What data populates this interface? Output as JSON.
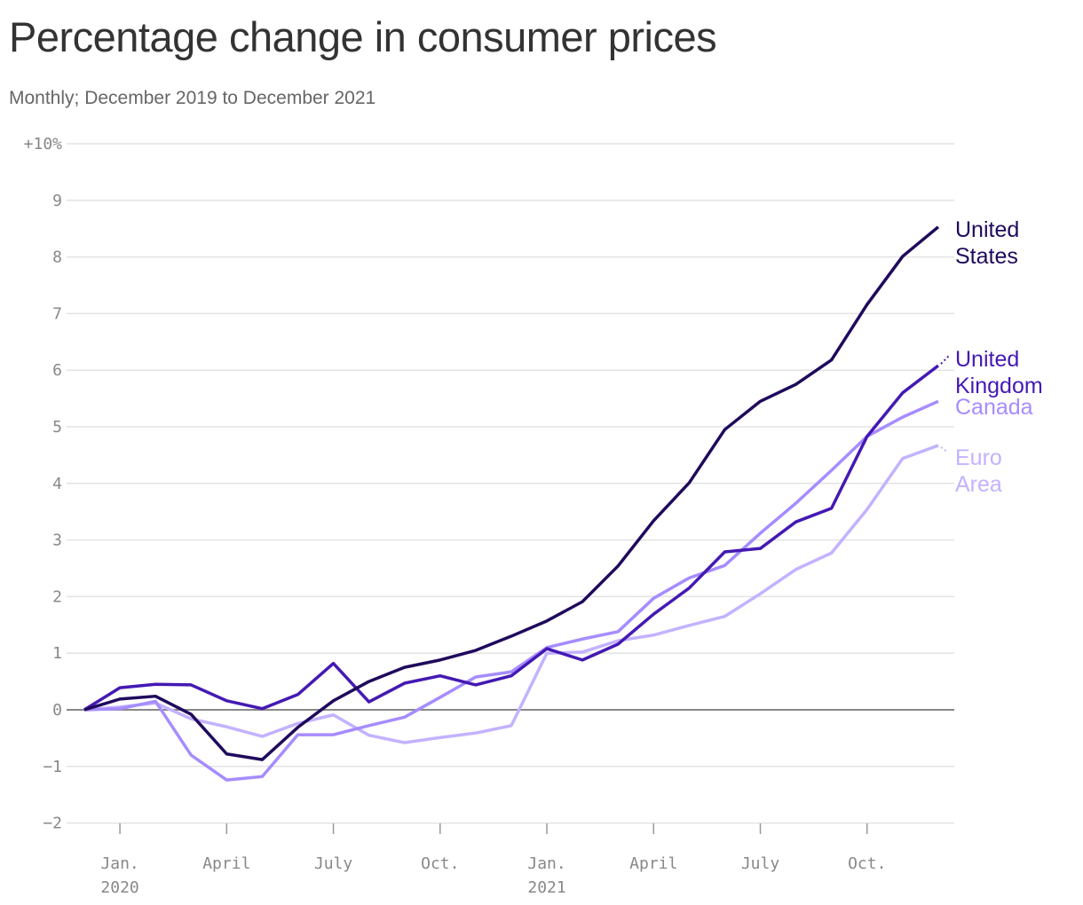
{
  "chart_data": {
    "type": "line",
    "title": "Percentage change in consumer prices",
    "subtitle": "Monthly; December 2019 to December 2021",
    "x": [
      "2019-12",
      "2020-01",
      "2020-02",
      "2020-03",
      "2020-04",
      "2020-05",
      "2020-06",
      "2020-07",
      "2020-08",
      "2020-09",
      "2020-10",
      "2020-11",
      "2020-12",
      "2021-01",
      "2021-02",
      "2021-03",
      "2021-04",
      "2021-05",
      "2021-06",
      "2021-07",
      "2021-08",
      "2021-09",
      "2021-10",
      "2021-11",
      "2021-12"
    ],
    "ylim": [
      -2,
      10
    ],
    "y_ticks": [
      {
        "v": 10,
        "label": "+10%"
      },
      {
        "v": 9,
        "label": "9"
      },
      {
        "v": 8,
        "label": "8"
      },
      {
        "v": 7,
        "label": "7"
      },
      {
        "v": 6,
        "label": "6"
      },
      {
        "v": 5,
        "label": "5"
      },
      {
        "v": 4,
        "label": "4"
      },
      {
        "v": 3,
        "label": "3"
      },
      {
        "v": 2,
        "label": "2"
      },
      {
        "v": 1,
        "label": "1"
      },
      {
        "v": 0,
        "label": "0"
      },
      {
        "v": -1,
        "label": "−1"
      },
      {
        "v": -2,
        "label": "−2"
      }
    ],
    "x_ticks": [
      {
        "i": 1,
        "label": "Jan.",
        "year": "2020"
      },
      {
        "i": 4,
        "label": "April",
        "year": ""
      },
      {
        "i": 7,
        "label": "July",
        "year": ""
      },
      {
        "i": 10,
        "label": "Oct.",
        "year": ""
      },
      {
        "i": 13,
        "label": "Jan.",
        "year": "2021"
      },
      {
        "i": 16,
        "label": "April",
        "year": ""
      },
      {
        "i": 19,
        "label": "July",
        "year": ""
      },
      {
        "i": 22,
        "label": "Oct.",
        "year": ""
      }
    ],
    "grid": true,
    "series": [
      {
        "name": "United States",
        "label_lines": [
          "United",
          "States"
        ],
        "color": "#1f0a5c",
        "values": [
          0,
          0.19,
          0.24,
          -0.08,
          -0.78,
          -0.88,
          -0.31,
          0.16,
          0.5,
          0.75,
          0.88,
          1.05,
          1.3,
          1.57,
          1.91,
          2.54,
          3.34,
          4.01,
          4.95,
          5.45,
          5.75,
          6.18,
          7.16,
          8.01,
          8.53
        ]
      },
      {
        "name": "United Kingdom",
        "label_lines": [
          "United",
          "Kingdom"
        ],
        "color": "#4419b3",
        "values": [
          0,
          0.39,
          0.45,
          0.44,
          0.16,
          0.02,
          0.27,
          0.82,
          0.14,
          0.47,
          0.6,
          0.44,
          0.6,
          1.08,
          0.88,
          1.16,
          1.69,
          2.15,
          2.79,
          2.85,
          3.32,
          3.56,
          4.83,
          5.6,
          6.08
        ]
      },
      {
        "name": "Canada",
        "label_lines": [
          "Canada"
        ],
        "color": "#a68cff",
        "values": [
          0,
          0.02,
          0.15,
          -0.8,
          -1.24,
          -1.18,
          -0.44,
          -0.44,
          -0.28,
          -0.13,
          0.22,
          0.58,
          0.67,
          1.1,
          1.25,
          1.38,
          1.97,
          2.33,
          2.55,
          3.12,
          3.65,
          4.23,
          4.83,
          5.17,
          5.45
        ]
      },
      {
        "name": "Euro Area",
        "label_lines": [
          "Euro",
          "Area"
        ],
        "color": "#c3b2ff",
        "values": [
          0,
          0.05,
          0.12,
          -0.16,
          -0.3,
          -0.47,
          -0.24,
          -0.09,
          -0.45,
          -0.58,
          -0.49,
          -0.41,
          -0.28,
          1.0,
          1.02,
          1.22,
          1.32,
          1.49,
          1.65,
          2.05,
          2.48,
          2.77,
          3.54,
          4.44,
          4.67
        ]
      }
    ]
  }
}
